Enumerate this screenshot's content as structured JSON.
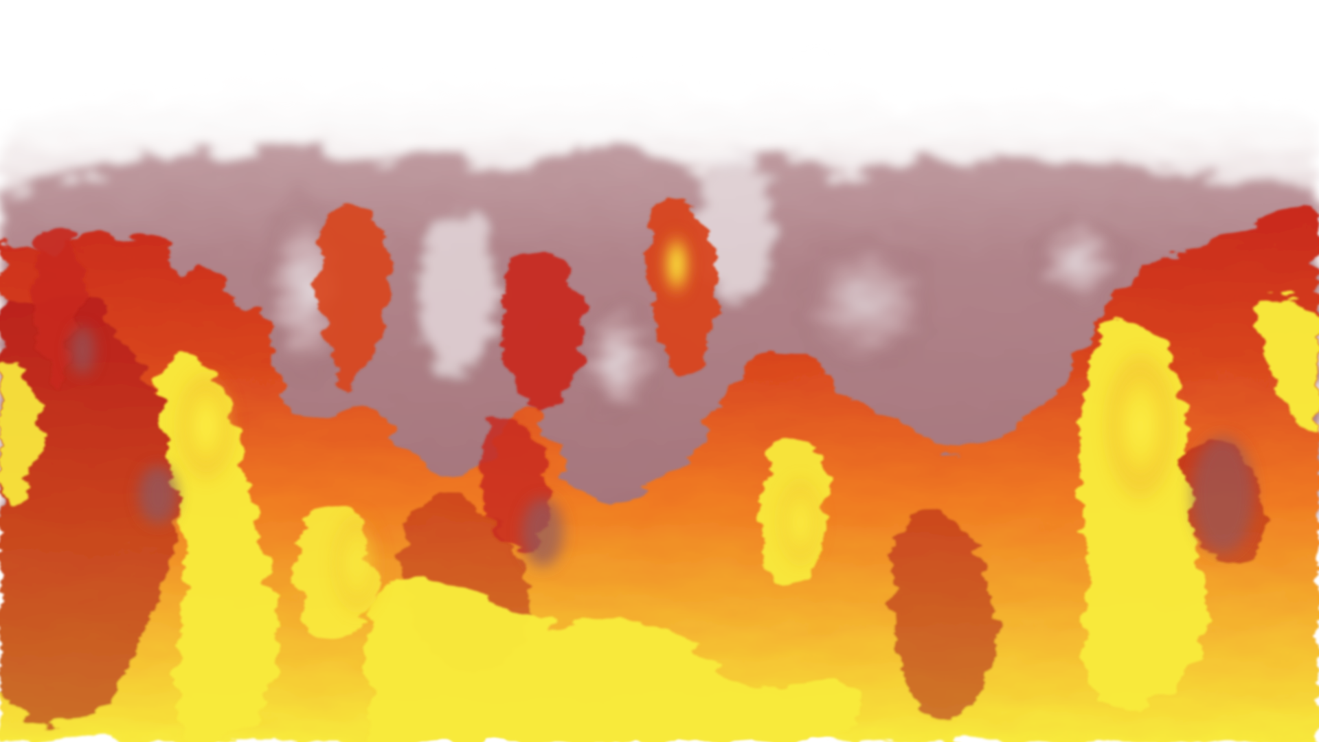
{
  "image": {
    "palette": {
      "background": "#ffffff",
      "haze_light": "#e7dde0",
      "haze_mid": "#b88f95",
      "haze_dark": "#8f5a61",
      "deep_red": "#a8101a",
      "red": "#c8281c",
      "orange": "#f07a22",
      "yellow": "#f8ea3c",
      "bright_yellow": "#fff04a"
    }
  }
}
